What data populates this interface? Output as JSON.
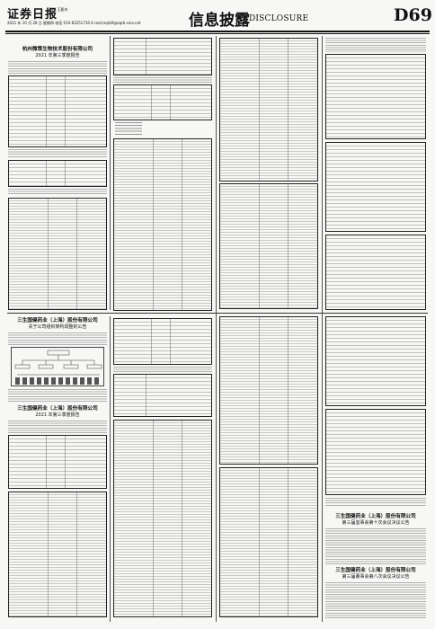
{
  "masthead": {
    "logo": "证券日报",
    "logo_sub": "责任 王夏舟",
    "dateline": "2021 年 10 月 28 日 星期四 电话 010-83251716  E-mail:zqrb9@zqrb.sina.net",
    "section_title": "信息披露",
    "section_en": "DISCLOSURE",
    "page_number": "D69"
  },
  "notices": [
    {
      "company": "杭州微策生物技术股份有限公司",
      "title": "2021 年第三季度报告"
    },
    {
      "company": "三生国健药业（上海）股份有限公司",
      "title": "关于公司组织架构调整的公告"
    },
    {
      "company": "三生国健药业（上海）股份有限公司",
      "title": "2021 年第三季度报告"
    },
    {
      "company": "三生国健药业（上海）股份有限公司",
      "title": "第三届监事会第十次会议决议公告"
    },
    {
      "company": "三生国健药业（上海）股份有限公司",
      "title": "第三届董事会第八次会议决议公告"
    }
  ]
}
